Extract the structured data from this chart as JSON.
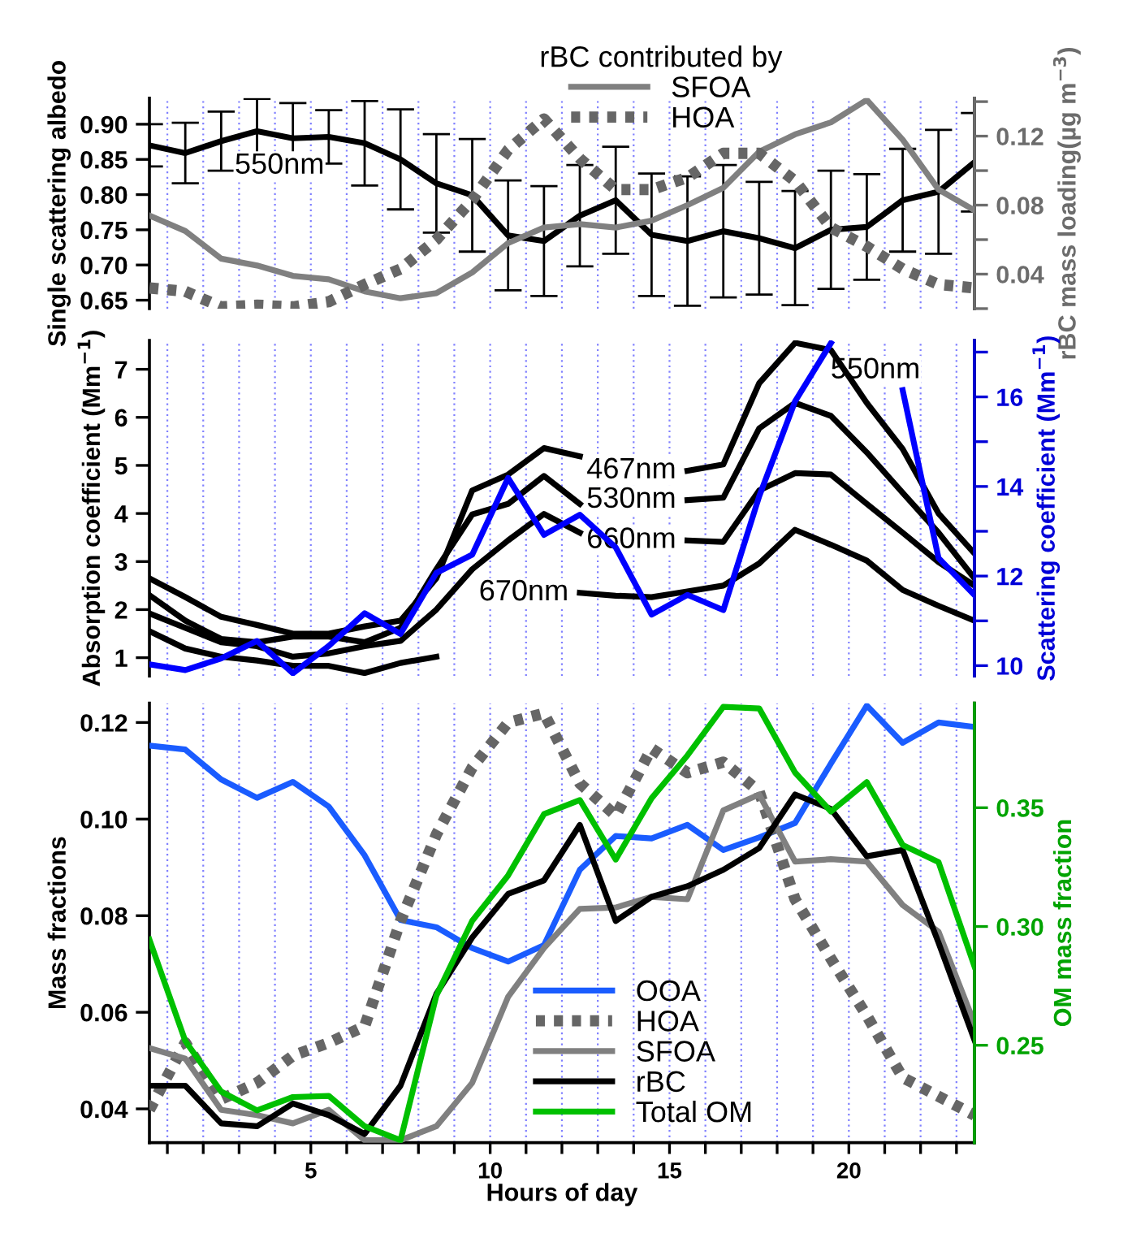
{
  "chart_data": [
    {
      "type": "line",
      "ylabel": "Single scattering albedo",
      "y2label": "rBC mass loading(µg m$^{−3}$)",
      "legend_title": "rBC contributed by",
      "legend": "top",
      "grid": "x",
      "tick_labels": "y",
      "x": [
        0.5,
        1.5,
        2.5,
        3.5,
        4.5,
        5.5,
        6.5,
        7.5,
        8.5,
        9.5,
        10.5,
        11.5,
        12.5,
        13.5,
        14.5,
        15.5,
        16.5,
        17.5,
        18.5,
        19.5,
        20.5,
        21.5,
        22.5,
        23.5
      ],
      "xlim": [
        0.5,
        23.5
      ],
      "xticks": [
        {
          "value": 1,
          "label": null
        },
        {
          "value": 2,
          "label": null
        },
        {
          "value": 3,
          "label": null
        },
        {
          "value": 4,
          "label": null
        },
        5,
        {
          "value": 6,
          "label": null
        },
        {
          "value": 7,
          "label": null
        },
        {
          "value": 8,
          "label": null
        },
        {
          "value": 9,
          "label": null
        },
        10,
        {
          "value": 11,
          "label": null
        },
        {
          "value": 12,
          "label": null
        },
        {
          "value": 13,
          "label": null
        },
        {
          "value": 14,
          "label": null
        },
        15,
        {
          "value": 16,
          "label": null
        },
        {
          "value": 17,
          "label": null
        },
        {
          "value": 18,
          "label": null
        },
        {
          "value": 19,
          "label": null
        },
        20,
        {
          "value": 21,
          "label": null
        },
        {
          "value": 22,
          "label": null
        },
        {
          "value": 23,
          "label": null
        }
      ],
      "ylim": [
        0.638,
        0.937
      ],
      "yticks": [
        0.65,
        {
          "value": 0.7,
          "label": "0.70"
        },
        0.75,
        {
          "value": 0.8,
          "label": "0.80"
        },
        0.85,
        {
          "value": 0.9,
          "label": "0.90"
        }
      ],
      "y2lim": [
        0.02,
        0.142
      ],
      "y2ticks": [
        {
          "value": 0.02,
          "label": null
        },
        0.04,
        {
          "value": 0.06,
          "label": null
        },
        0.08,
        {
          "value": 0.1,
          "label": null
        },
        0.12,
        {
          "value": 0.14,
          "label": null
        }
      ],
      "series": [
        {
          "color": "#000000",
          "line_style": "solid",
          "values": [
            0.87,
            0.859,
            0.876,
            0.89,
            0.88,
            0.882,
            0.873,
            0.85,
            0.816,
            0.799,
            0.742,
            0.734,
            0.77,
            0.792,
            0.743,
            0.734,
            0.748,
            0.738,
            0.724,
            0.75,
            0.754,
            0.792,
            0.804,
            0.846
          ],
          "errors": [
            0.03,
            0.043,
            0.042,
            0.046,
            0.05,
            0.038,
            0.06,
            0.071,
            0.07,
            0.08,
            0.078,
            0.078,
            0.072,
            0.076,
            0.087,
            0.092,
            0.094,
            0.08,
            0.081,
            0.084,
            0.075,
            0.073,
            0.088,
            0.07
          ]
        },
        {
          "name": "SFOA",
          "axis": "y2",
          "color": "#808080",
          "line_style": "solid",
          "values": [
            0.074,
            0.065,
            0.049,
            0.045,
            0.039,
            0.037,
            0.03,
            0.026,
            0.029,
            0.041,
            0.058,
            0.067,
            0.069,
            0.067,
            0.071,
            0.08,
            0.09,
            0.111,
            0.121,
            0.128,
            0.141,
            0.118,
            0.089,
            0.077
          ]
        },
        {
          "name": "HOA",
          "axis": "y2",
          "color": "#666666",
          "line_style": "dotted",
          "values": [
            0.032,
            0.03,
            0.021,
            0.022,
            0.021,
            0.024,
            0.034,
            0.043,
            0.06,
            0.083,
            0.112,
            0.13,
            0.107,
            0.089,
            0.089,
            0.096,
            0.11,
            0.11,
            0.094,
            0.067,
            0.056,
            0.043,
            0.034,
            0.032
          ]
        }
      ],
      "annotations": [
        {
          "text": "550nm",
          "x": 2.5,
          "y": 0.876
        }
      ]
    },
    {
      "type": "line",
      "ylabel": "Absorption coefficient (Mm$^{−1}$)",
      "y2label": "Scattering coefficient (Mm$^{−1}$)",
      "grid": "x",
      "tick_labels": "y",
      "x": [
        0.5,
        1.5,
        2.5,
        3.5,
        4.5,
        5.5,
        6.5,
        7.5,
        8.5,
        9.5,
        10.5,
        11.5,
        12.5,
        13.5,
        14.5,
        15.5,
        16.5,
        17.5,
        18.5,
        19.5,
        20.5,
        21.5,
        22.5,
        23.5
      ],
      "xlim": [
        0.5,
        23.5
      ],
      "xticks": [
        {
          "value": 1,
          "label": null
        },
        {
          "value": 2,
          "label": null
        },
        {
          "value": 3,
          "label": null
        },
        {
          "value": 4,
          "label": null
        },
        5,
        {
          "value": 6,
          "label": null
        },
        {
          "value": 7,
          "label": null
        },
        {
          "value": 8,
          "label": null
        },
        {
          "value": 9,
          "label": null
        },
        10,
        {
          "value": 11,
          "label": null
        },
        {
          "value": 12,
          "label": null
        },
        {
          "value": 13,
          "label": null
        },
        {
          "value": 14,
          "label": null
        },
        15,
        {
          "value": 16,
          "label": null
        },
        {
          "value": 17,
          "label": null
        },
        {
          "value": 18,
          "label": null
        },
        {
          "value": 19,
          "label": null
        },
        20,
        {
          "value": 21,
          "label": null
        },
        {
          "value": 22,
          "label": null
        },
        {
          "value": 23,
          "label": null
        }
      ],
      "ylim": [
        0.62,
        7.6
      ],
      "yticks": [
        1,
        2,
        3,
        4,
        5,
        6,
        7
      ],
      "y2lim": [
        9.77,
        17.26
      ],
      "y2ticks": [
        10,
        {
          "value": 11,
          "label": null
        },
        12,
        {
          "value": 13,
          "label": null
        },
        14,
        {
          "value": 15,
          "label": null
        },
        16,
        {
          "value": 17,
          "label": null
        }
      ],
      "series": [
        {
          "color": "#000000",
          "line_style": "solid",
          "values": [
            2.65,
            2.26,
            1.85,
            1.68,
            1.5,
            1.5,
            1.65,
            1.77,
            2.65,
            4.48,
            4.81,
            5.36,
            5.19,
            null,
            null,
            4.89,
            5.02,
            6.71,
            7.55,
            7.4,
            6.3,
            5.34,
            4.0,
            3.17
          ]
        },
        {
          "color": "#000000",
          "line_style": "solid",
          "values": [
            2.3,
            1.77,
            1.39,
            1.32,
            1.44,
            1.44,
            1.32,
            1.62,
            2.84,
            3.98,
            4.2,
            4.78,
            4.2,
            null,
            null,
            4.28,
            4.33,
            5.77,
            6.3,
            6.03,
            5.27,
            4.43,
            3.6,
            2.65
          ]
        },
        {
          "color": "#000000",
          "line_style": "solid",
          "values": [
            1.92,
            1.62,
            1.32,
            1.24,
            1.02,
            1.09,
            1.24,
            1.35,
            2.0,
            2.84,
            3.44,
            3.99,
            3.6,
            null,
            null,
            3.44,
            3.41,
            4.48,
            4.84,
            4.81,
            4.2,
            3.6,
            2.99,
            2.5
          ]
        },
        {
          "color": "#000000",
          "line_style": "solid",
          "values": [
            1.55,
            1.19,
            1.02,
            0.94,
            0.83,
            0.83,
            0.68,
            0.89,
            1.02,
            null,
            null,
            null,
            2.35,
            2.29,
            2.26,
            2.38,
            2.5,
            2.96,
            3.66,
            3.35,
            3.02,
            2.41,
            2.08,
            1.77
          ]
        },
        {
          "axis": "y2",
          "color": "#0000ff",
          "line_style": "solid",
          "values": [
            10.03,
            9.9,
            10.16,
            10.55,
            9.83,
            10.44,
            11.17,
            10.71,
            12.07,
            12.48,
            14.19,
            12.92,
            13.37,
            12.64,
            11.14,
            11.58,
            11.24,
            13.78,
            15.9,
            17.2,
            null,
            16.15,
            12.4,
            11.58
          ]
        }
      ],
      "annotations": [
        {
          "text": "467nm",
          "x": 15.5,
          "y": 4.89
        },
        {
          "text": "530nm",
          "x": 15.5,
          "y": 4.28
        },
        {
          "text": "660nm",
          "x": 15.5,
          "y": 3.44
        },
        {
          "text": "670nm",
          "x": 12.5,
          "y": 2.35
        },
        "550nm"
      ]
    },
    {
      "type": "line",
      "xlabel": "Hours of day",
      "ylabel": "Mass fractions",
      "y2label": "OM mass fraction",
      "legend": "bottom",
      "grid": "x",
      "x": [
        0.5,
        1.5,
        2.5,
        3.5,
        4.5,
        5.5,
        6.5,
        7.5,
        8.5,
        9.5,
        10.5,
        11.5,
        12.5,
        13.5,
        14.5,
        15.5,
        16.5,
        17.5,
        18.5,
        19.5,
        20.5,
        21.5,
        22.5,
        23.5
      ],
      "xlim": [
        0.5,
        23.5
      ],
      "xticks": [
        {
          "value": 1,
          "label": null
        },
        {
          "value": 2,
          "label": null
        },
        {
          "value": 3,
          "label": null
        },
        {
          "value": 4,
          "label": null
        },
        5,
        {
          "value": 6,
          "label": null
        },
        {
          "value": 7,
          "label": null
        },
        {
          "value": 8,
          "label": null
        },
        {
          "value": 9,
          "label": null
        },
        10,
        {
          "value": 11,
          "label": null
        },
        {
          "value": 12,
          "label": null
        },
        {
          "value": 13,
          "label": null
        },
        {
          "value": 14,
          "label": null
        },
        15,
        {
          "value": 16,
          "label": null
        },
        {
          "value": 17,
          "label": null
        },
        {
          "value": 18,
          "label": null
        },
        {
          "value": 19,
          "label": null
        },
        20,
        {
          "value": 21,
          "label": null
        },
        {
          "value": 22,
          "label": null
        },
        {
          "value": 23,
          "label": null
        }
      ],
      "ylim": [
        0.033,
        0.124
      ],
      "yticks": [
        0.04,
        0.06,
        0.08,
        {
          "value": 0.1,
          "label": "0.10"
        },
        0.12
      ],
      "y2lim": [
        0.209,
        0.394
      ],
      "y2ticks": [
        0.25,
        {
          "value": 0.3,
          "label": "0.30"
        },
        0.35
      ],
      "series": [
        {
          "name": "OOA",
          "color": "#1a5cff",
          "line_style": "solid",
          "values": [
            0.1152,
            0.1144,
            0.1082,
            0.1044,
            0.1077,
            0.1026,
            0.0925,
            0.0791,
            0.0776,
            0.0733,
            0.0705,
            0.0739,
            0.0895,
            0.0965,
            0.096,
            0.0988,
            0.0936,
            0.0962,
            0.0992,
            0.1115,
            0.1235,
            0.1158,
            0.12,
            0.1191
          ]
        },
        {
          "name": "HOA",
          "color": "#666666",
          "line_style": "dotted",
          "values": [
            0.0398,
            0.0537,
            0.042,
            0.0454,
            0.051,
            0.0537,
            0.0571,
            0.0789,
            0.0968,
            0.1107,
            0.12,
            0.1219,
            0.1074,
            0.1007,
            0.1146,
            0.1096,
            0.1118,
            0.1057,
            0.0834,
            0.0711,
            0.0593,
            0.0465,
            0.0426,
            0.0387
          ]
        },
        {
          "name": "SFOA",
          "color": "#808080",
          "line_style": "solid",
          "values": [
            0.0526,
            0.0504,
            0.0398,
            0.0387,
            0.037,
            0.0398,
            0.0335,
            0.0335,
            0.0364,
            0.0454,
            0.0632,
            0.0733,
            0.0814,
            0.0817,
            0.0839,
            0.0834,
            0.1018,
            0.1051,
            0.0912,
            0.0917,
            0.0912,
            0.0822,
            0.0767,
            0.0577
          ]
        },
        {
          "name": "rBC",
          "color": "#000000",
          "line_style": "solid",
          "values": [
            0.0448,
            0.0448,
            0.037,
            0.0364,
            0.0411,
            0.0387,
            0.0348,
            0.0448,
            0.0638,
            0.0755,
            0.0845,
            0.0873,
            0.0988,
            0.0789,
            0.0839,
            0.0861,
            0.0895,
            0.094,
            0.1051,
            0.1021,
            0.0923,
            0.0936,
            0.0744,
            0.0543
          ]
        },
        {
          "name": "Total OM",
          "axis": "y2",
          "color": "#00c000",
          "line_style": "solid",
          "values": [
            0.2945,
            0.2518,
            0.2305,
            0.2226,
            0.2282,
            0.2287,
            0.2159,
            0.21,
            0.2709,
            0.3024,
            0.3215,
            0.3473,
            0.3532,
            0.3282,
            0.354,
            0.372,
            0.3925,
            0.3918,
            0.3648,
            0.3484,
            0.3608,
            0.3343,
            0.3271,
            0.2833
          ]
        }
      ]
    }
  ]
}
